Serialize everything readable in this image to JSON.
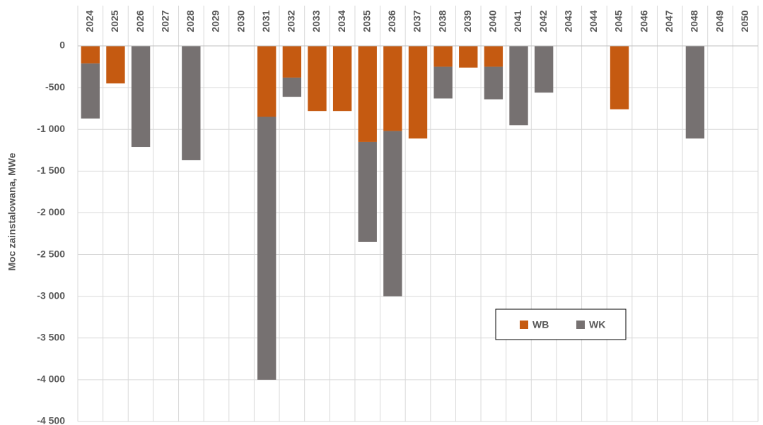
{
  "chart_data": {
    "type": "bar",
    "stacked": true,
    "y_label": "Moc zainstalowana, MWe",
    "categories": [
      "2024",
      "2025",
      "2026",
      "2027",
      "2028",
      "2029",
      "2030",
      "2031",
      "2032",
      "2033",
      "2034",
      "2035",
      "2036",
      "2037",
      "2038",
      "2039",
      "2040",
      "2041",
      "2042",
      "2043",
      "2044",
      "2045",
      "2046",
      "2047",
      "2048",
      "2049",
      "2050"
    ],
    "series": [
      {
        "name": "WB",
        "color": "#c55a11",
        "values": [
          -210,
          -450,
          null,
          null,
          null,
          null,
          null,
          -850,
          -380,
          -780,
          -780,
          -1150,
          -1020,
          -1110,
          -250,
          -260,
          -250,
          null,
          null,
          null,
          null,
          -760,
          null,
          null,
          null,
          null,
          null
        ]
      },
      {
        "name": "WK",
        "color": "#767171",
        "values": [
          -660,
          null,
          -1210,
          null,
          -1370,
          null,
          null,
          -3150,
          -230,
          null,
          null,
          -1200,
          -1980,
          null,
          -380,
          null,
          -390,
          -950,
          -560,
          null,
          null,
          null,
          null,
          null,
          -1110,
          null,
          null
        ]
      }
    ],
    "ylim": [
      0,
      -4500
    ],
    "yticks": [
      0,
      -500,
      {
        "value": -1000,
        "label": "-1 000"
      },
      {
        "value": -1500,
        "label": "-1 500"
      },
      {
        "value": -2000,
        "label": "-2 000"
      },
      {
        "value": -2500,
        "label": "-2 500"
      },
      {
        "value": -3000,
        "label": "-3 000"
      },
      {
        "value": -3500,
        "label": "-3 500"
      },
      {
        "value": -4000,
        "label": "-4 000"
      },
      {
        "value": -4500,
        "label": "-4 500"
      }
    ],
    "grid": true,
    "legend": "center-right"
  }
}
